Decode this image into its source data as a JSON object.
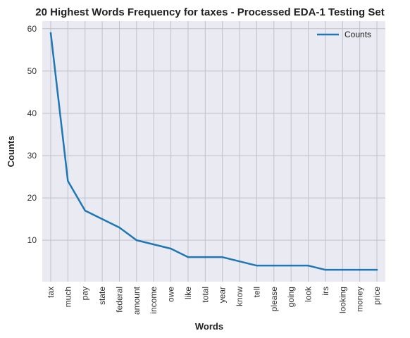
{
  "chart_data": {
    "type": "line",
    "title": "20 Highest Words Frequency for taxes - Processed EDA-1 Testing Set",
    "xlabel": "Words",
    "ylabel": "Counts",
    "categories": [
      "tax",
      "much",
      "pay",
      "state",
      "federal",
      "amount",
      "income",
      "owe",
      "like",
      "total",
      "year",
      "know",
      "tell",
      "please",
      "going",
      "look",
      "irs",
      "looking",
      "money",
      "price"
    ],
    "series": [
      {
        "name": "Counts",
        "values": [
          59,
          24,
          17,
          15,
          13,
          10,
          9,
          8,
          6,
          6,
          6,
          5,
          4,
          4,
          4,
          4,
          3,
          3,
          3,
          3
        ]
      }
    ],
    "ylim": [
      0.2,
      61.8
    ],
    "yticks": [
      10,
      20,
      30,
      40,
      50,
      60
    ],
    "grid": true,
    "legend_position": "top-right",
    "colors": {
      "line": "#1f77b4",
      "background": "#eaeaf2",
      "grid": "#c0c0c8"
    }
  }
}
